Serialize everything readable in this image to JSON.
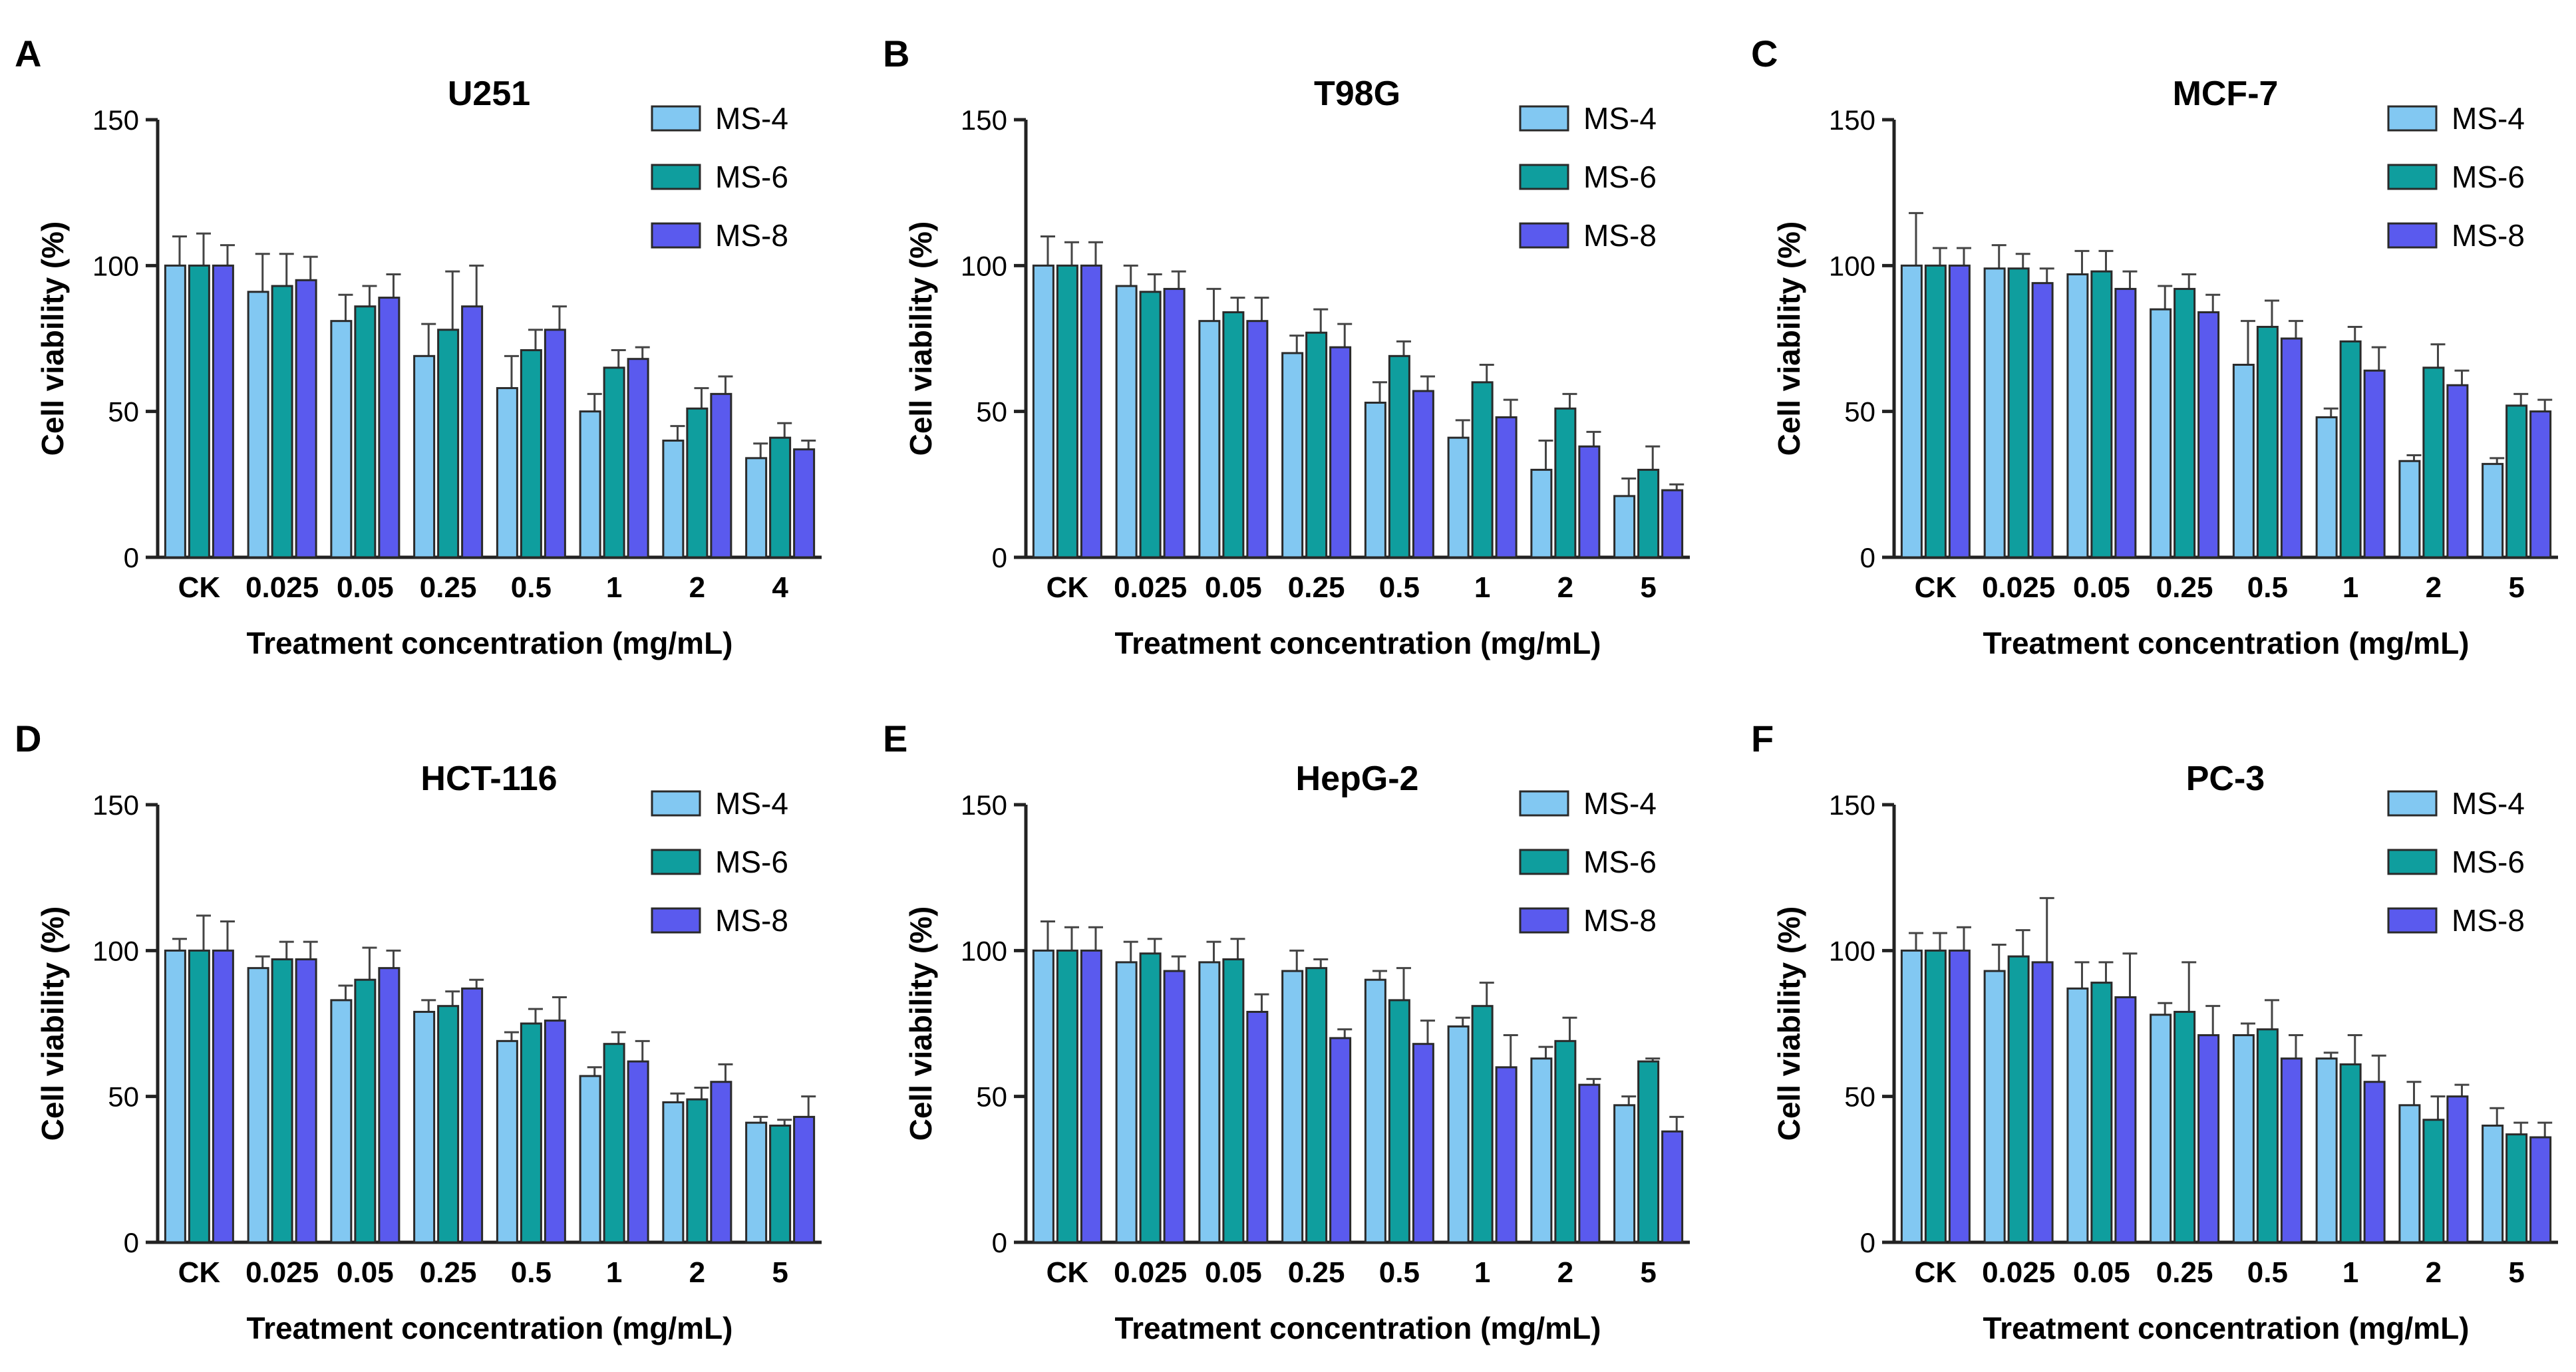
{
  "figure": {
    "description_id": "cell-viability-panels"
  },
  "legend_labels": [
    "MS-4",
    "MS-6",
    "MS-8"
  ],
  "series_colors": {
    "MS-4": "#82c8f2",
    "MS-6": "#0f9e9e",
    "MS-8": "#5a5aee"
  },
  "chart_data": [
    {
      "panel": "A",
      "type": "bar",
      "title": "U251",
      "xlabel": "Treatment concentration (mg/mL)",
      "ylabel": "Cell viability (%)",
      "ylim": [
        0,
        150
      ],
      "yticks": [
        0,
        50,
        100,
        150
      ],
      "categories": [
        "CK",
        "0.025",
        "0.05",
        "0.25",
        "0.5",
        "1",
        "2",
        "4"
      ],
      "series": [
        {
          "name": "MS-4",
          "values": [
            100,
            91,
            81,
            69,
            58,
            50,
            40,
            34
          ],
          "errors": [
            10,
            13,
            9,
            11,
            11,
            6,
            5,
            5
          ]
        },
        {
          "name": "MS-6",
          "values": [
            100,
            93,
            86,
            78,
            71,
            65,
            51,
            41
          ],
          "errors": [
            11,
            11,
            7,
            20,
            7,
            6,
            7,
            5
          ]
        },
        {
          "name": "MS-8",
          "values": [
            100,
            95,
            89,
            86,
            78,
            68,
            56,
            37
          ],
          "errors": [
            7,
            8,
            8,
            14,
            8,
            4,
            6,
            3
          ]
        }
      ]
    },
    {
      "panel": "B",
      "type": "bar",
      "title": "T98G",
      "xlabel": "Treatment concentration (mg/mL)",
      "ylabel": "Cell viability (%)",
      "ylim": [
        0,
        150
      ],
      "yticks": [
        0,
        50,
        100,
        150
      ],
      "categories": [
        "CK",
        "0.025",
        "0.05",
        "0.25",
        "0.5",
        "1",
        "2",
        "5"
      ],
      "series": [
        {
          "name": "MS-4",
          "values": [
            100,
            93,
            81,
            70,
            53,
            41,
            30,
            21
          ],
          "errors": [
            10,
            7,
            11,
            6,
            7,
            6,
            10,
            6
          ]
        },
        {
          "name": "MS-6",
          "values": [
            100,
            91,
            84,
            77,
            69,
            60,
            51,
            30
          ],
          "errors": [
            8,
            6,
            5,
            8,
            5,
            6,
            5,
            8
          ]
        },
        {
          "name": "MS-8",
          "values": [
            100,
            92,
            81,
            72,
            57,
            48,
            38,
            23
          ],
          "errors": [
            8,
            6,
            8,
            8,
            5,
            6,
            5,
            2
          ]
        }
      ]
    },
    {
      "panel": "C",
      "type": "bar",
      "title": "MCF-7",
      "xlabel": "Treatment concentration (mg/mL)",
      "ylabel": "Cell viability (%)",
      "ylim": [
        0,
        150
      ],
      "yticks": [
        0,
        50,
        100,
        150
      ],
      "categories": [
        "CK",
        "0.025",
        "0.05",
        "0.25",
        "0.5",
        "1",
        "2",
        "5"
      ],
      "series": [
        {
          "name": "MS-4",
          "values": [
            100,
            99,
            97,
            85,
            66,
            48,
            33,
            32
          ],
          "errors": [
            18,
            8,
            8,
            8,
            15,
            3,
            2,
            2
          ]
        },
        {
          "name": "MS-6",
          "values": [
            100,
            99,
            98,
            92,
            79,
            74,
            65,
            52
          ],
          "errors": [
            6,
            5,
            7,
            5,
            9,
            5,
            8,
            4
          ]
        },
        {
          "name": "MS-8",
          "values": [
            100,
            94,
            92,
            84,
            75,
            64,
            59,
            50
          ],
          "errors": [
            6,
            5,
            6,
            6,
            6,
            8,
            5,
            4
          ]
        }
      ]
    },
    {
      "panel": "D",
      "type": "bar",
      "title": "HCT-116",
      "xlabel": "Treatment concentration (mg/mL)",
      "ylabel": "Cell viability (%)",
      "ylim": [
        0,
        150
      ],
      "yticks": [
        0,
        50,
        100,
        150
      ],
      "categories": [
        "CK",
        "0.025",
        "0.05",
        "0.25",
        "0.5",
        "1",
        "2",
        "5"
      ],
      "series": [
        {
          "name": "MS-4",
          "values": [
            100,
            94,
            83,
            79,
            69,
            57,
            48,
            41
          ],
          "errors": [
            4,
            4,
            5,
            4,
            3,
            3,
            3,
            2
          ]
        },
        {
          "name": "MS-6",
          "values": [
            100,
            97,
            90,
            81,
            75,
            68,
            49,
            40
          ],
          "errors": [
            12,
            6,
            11,
            5,
            5,
            4,
            4,
            2
          ]
        },
        {
          "name": "MS-8",
          "values": [
            100,
            97,
            94,
            87,
            76,
            62,
            55,
            43
          ],
          "errors": [
            10,
            6,
            6,
            3,
            8,
            7,
            6,
            7
          ]
        }
      ]
    },
    {
      "panel": "E",
      "type": "bar",
      "title": "HepG-2",
      "xlabel": "Treatment concentration (mg/mL)",
      "ylabel": "Cell viability (%)",
      "ylim": [
        0,
        150
      ],
      "yticks": [
        0,
        50,
        100,
        150
      ],
      "categories": [
        "CK",
        "0.025",
        "0.05",
        "0.25",
        "0.5",
        "1",
        "2",
        "5"
      ],
      "series": [
        {
          "name": "MS-4",
          "values": [
            100,
            96,
            96,
            93,
            90,
            74,
            63,
            47
          ],
          "errors": [
            10,
            7,
            7,
            7,
            3,
            3,
            4,
            3
          ]
        },
        {
          "name": "MS-6",
          "values": [
            100,
            99,
            97,
            94,
            83,
            81,
            69,
            62
          ],
          "errors": [
            8,
            5,
            7,
            3,
            11,
            8,
            8,
            1
          ]
        },
        {
          "name": "MS-8",
          "values": [
            100,
            93,
            79,
            70,
            68,
            60,
            54,
            38
          ],
          "errors": [
            8,
            5,
            6,
            3,
            8,
            11,
            2,
            5
          ]
        }
      ]
    },
    {
      "panel": "F",
      "type": "bar",
      "title": "PC-3",
      "xlabel": "Treatment concentration (mg/mL)",
      "ylabel": "Cell viability (%)",
      "ylim": [
        0,
        150
      ],
      "yticks": [
        0,
        50,
        100,
        150
      ],
      "categories": [
        "CK",
        "0.025",
        "0.05",
        "0.25",
        "0.5",
        "1",
        "2",
        "5"
      ],
      "series": [
        {
          "name": "MS-4",
          "values": [
            100,
            93,
            87,
            78,
            71,
            63,
            47,
            40
          ],
          "errors": [
            6,
            9,
            9,
            4,
            4,
            2,
            8,
            6
          ]
        },
        {
          "name": "MS-6",
          "values": [
            100,
            98,
            89,
            79,
            73,
            61,
            42,
            37
          ],
          "errors": [
            6,
            9,
            7,
            17,
            10,
            10,
            8,
            4
          ]
        },
        {
          "name": "MS-8",
          "values": [
            100,
            96,
            84,
            71,
            63,
            55,
            50,
            36
          ],
          "errors": [
            8,
            22,
            15,
            10,
            8,
            9,
            4,
            5
          ]
        }
      ]
    }
  ]
}
